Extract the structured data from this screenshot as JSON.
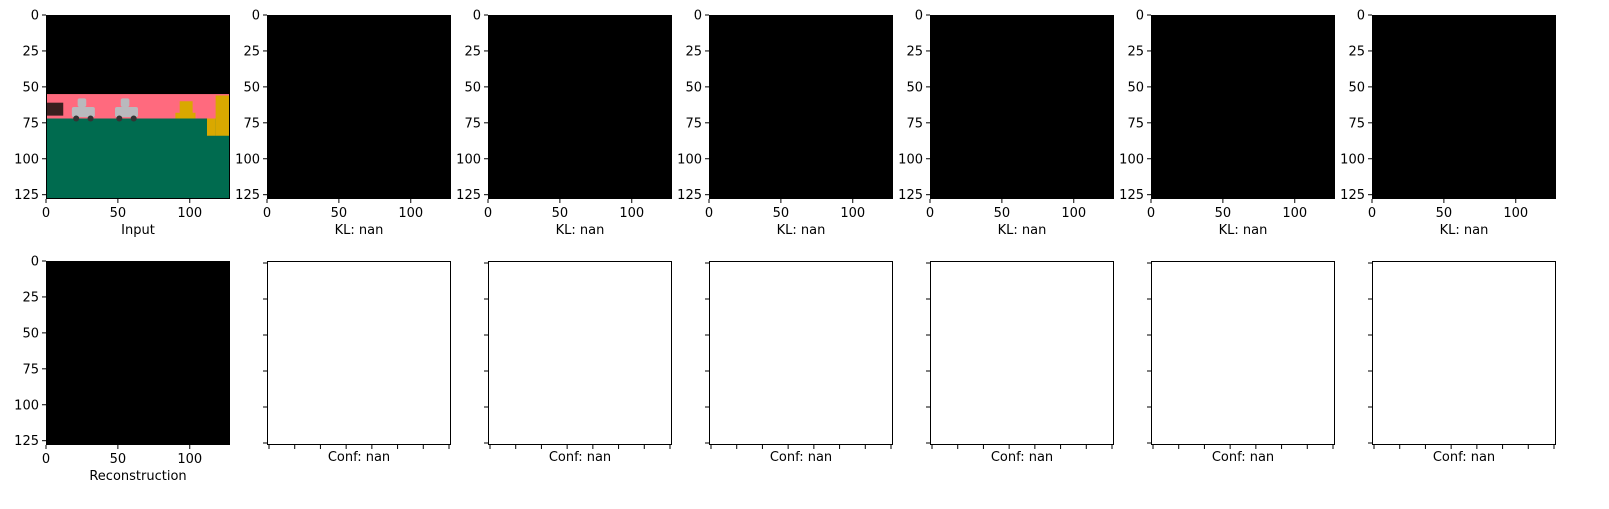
{
  "colors": {
    "axis": "#000000",
    "empty_panel": "#ffffff",
    "black_image": "#000000",
    "scene_sky": "#ff6a7e",
    "scene_ground": "#006b4f",
    "scene_car": "#b9b9bd",
    "scene_gold": "#d9a800",
    "scene_dark": "#3a1f1f"
  },
  "chart_data": [
    {
      "type": "image",
      "panel": "input",
      "caption": "Input",
      "xlim": [
        0,
        128
      ],
      "ylim": [
        128,
        0
      ],
      "xticks": [
        0,
        50,
        100
      ],
      "yticks": [
        0,
        25,
        50,
        75,
        100,
        125
      ],
      "content": "scene",
      "scene": {
        "sky_rows": [
          55,
          72
        ],
        "ground_from_row": 72,
        "objects": [
          "dark-block",
          "car",
          "car",
          "gold-object",
          "gold-object"
        ]
      }
    },
    {
      "type": "image",
      "panel": "kl-1",
      "caption": "KL: nan",
      "xlim": [
        0,
        128
      ],
      "ylim": [
        128,
        0
      ],
      "xticks": [
        0,
        50,
        100
      ],
      "yticks": [
        0,
        25,
        50,
        75,
        100,
        125
      ],
      "content": "black"
    },
    {
      "type": "image",
      "panel": "kl-2",
      "caption": "KL: nan",
      "xlim": [
        0,
        128
      ],
      "ylim": [
        128,
        0
      ],
      "xticks": [
        0,
        50,
        100
      ],
      "yticks": [
        0,
        25,
        50,
        75,
        100,
        125
      ],
      "content": "black"
    },
    {
      "type": "image",
      "panel": "kl-3",
      "caption": "KL: nan",
      "xlim": [
        0,
        128
      ],
      "ylim": [
        128,
        0
      ],
      "xticks": [
        0,
        50,
        100
      ],
      "yticks": [
        0,
        25,
        50,
        75,
        100,
        125
      ],
      "content": "black"
    },
    {
      "type": "image",
      "panel": "kl-4",
      "caption": "KL: nan",
      "xlim": [
        0,
        128
      ],
      "ylim": [
        128,
        0
      ],
      "xticks": [
        0,
        50,
        100
      ],
      "yticks": [
        0,
        25,
        50,
        75,
        100,
        125
      ],
      "content": "black"
    },
    {
      "type": "image",
      "panel": "kl-5",
      "caption": "KL: nan",
      "xlim": [
        0,
        128
      ],
      "ylim": [
        128,
        0
      ],
      "xticks": [
        0,
        50,
        100
      ],
      "yticks": [
        0,
        25,
        50,
        75,
        100,
        125
      ],
      "content": "black"
    },
    {
      "type": "image",
      "panel": "kl-6",
      "caption": "KL: nan",
      "xlim": [
        0,
        128
      ],
      "ylim": [
        128,
        0
      ],
      "xticks": [
        0,
        50,
        100
      ],
      "yticks": [
        0,
        25,
        50,
        75,
        100,
        125
      ],
      "content": "black"
    },
    {
      "type": "image",
      "panel": "reconstruction",
      "caption": "Reconstruction",
      "xlim": [
        0,
        128
      ],
      "ylim": [
        128,
        0
      ],
      "xticks": [
        0,
        50,
        100
      ],
      "yticks": [
        0,
        25,
        50,
        75,
        100,
        125
      ],
      "content": "black"
    },
    {
      "type": "image",
      "panel": "conf-1",
      "caption": "Conf: nan",
      "content": "empty",
      "unlabeled_ticks": true
    },
    {
      "type": "image",
      "panel": "conf-2",
      "caption": "Conf: nan",
      "content": "empty",
      "unlabeled_ticks": true
    },
    {
      "type": "image",
      "panel": "conf-3",
      "caption": "Conf: nan",
      "content": "empty",
      "unlabeled_ticks": true
    },
    {
      "type": "image",
      "panel": "conf-4",
      "caption": "Conf: nan",
      "content": "empty",
      "unlabeled_ticks": true
    },
    {
      "type": "image",
      "panel": "conf-5",
      "caption": "Conf: nan",
      "content": "empty",
      "unlabeled_ticks": true
    },
    {
      "type": "image",
      "panel": "conf-6",
      "caption": "Conf: nan",
      "content": "empty",
      "unlabeled_ticks": true
    }
  ]
}
